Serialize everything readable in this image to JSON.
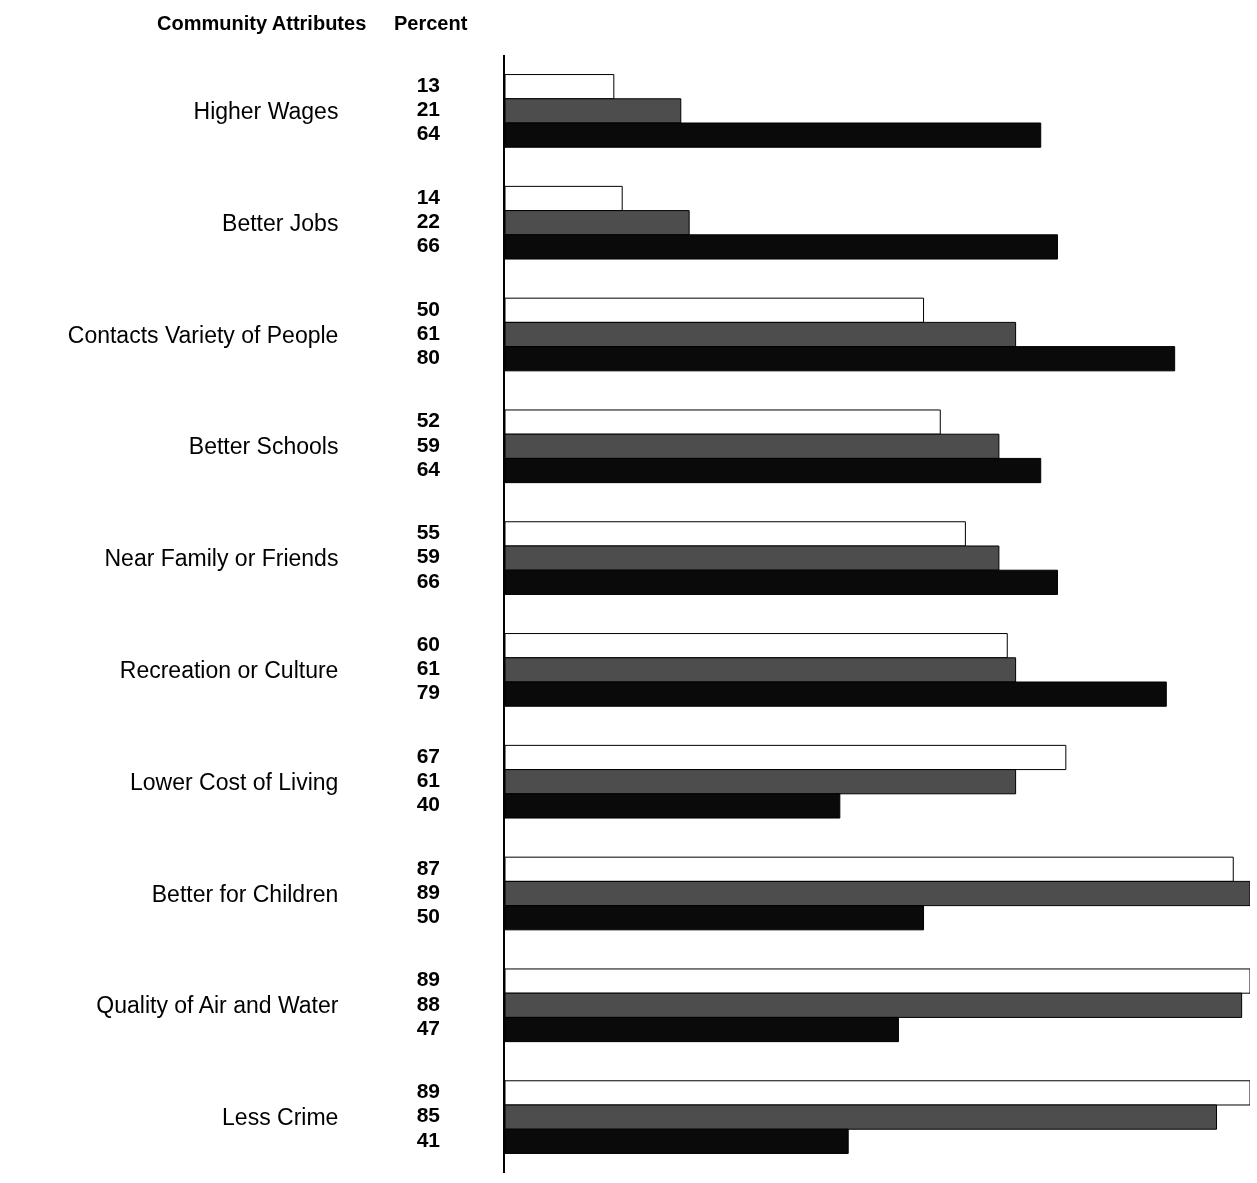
{
  "chart_data": {
    "type": "bar",
    "orientation": "horizontal",
    "ylabel": "Community Attributes",
    "xlabel": "Percent",
    "categories": [
      "Higher Wages",
      "Better Jobs",
      "Contacts Variety of People",
      "Better Schools",
      "Near Family or Friends",
      "Recreation or Culture",
      "Lower Cost of Living",
      "Better for Children",
      "Quality of Air and Water",
      "Less Crime"
    ],
    "series": [
      {
        "color": "#ffffff",
        "values": [
          13,
          14,
          50,
          52,
          55,
          60,
          67,
          87,
          89,
          89
        ]
      },
      {
        "color": "#4d4d4d",
        "values": [
          21,
          22,
          61,
          59,
          59,
          61,
          61,
          89,
          88,
          85
        ]
      },
      {
        "color": "#0a0a0a",
        "values": [
          64,
          66,
          80,
          64,
          66,
          79,
          40,
          50,
          47,
          41
        ]
      }
    ],
    "xlim": [
      0,
      89
    ],
    "data_labels": true,
    "tick_labels": "y"
  }
}
